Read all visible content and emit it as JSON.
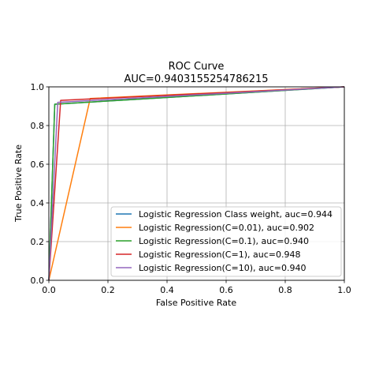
{
  "chart_data": {
    "type": "line",
    "title": "ROC Curve",
    "subtitle": "AUC=0.9403155254786215",
    "xlabel": "False Positive Rate",
    "ylabel": "True Positive Rate",
    "xlim": [
      0.0,
      1.0
    ],
    "ylim": [
      0.0,
      1.0
    ],
    "xticks": [
      "0.0",
      "0.2",
      "0.4",
      "0.6",
      "0.8",
      "1.0"
    ],
    "yticks": [
      "0.0",
      "0.2",
      "0.4",
      "0.6",
      "0.8",
      "1.0"
    ],
    "grid": true,
    "legend_position": "lower-right",
    "series": [
      {
        "name": "Logistic Regression Class weight, auc=0.944",
        "color": "#1f77b4",
        "x": [
          0.0,
          0.02,
          1.0
        ],
        "y": [
          0.0,
          0.91,
          1.0
        ]
      },
      {
        "name": "Logistic Regression(C=0.01), auc=0.902",
        "color": "#ff7f0e",
        "x": [
          0.0,
          0.14,
          1.0
        ],
        "y": [
          0.0,
          0.94,
          1.0
        ]
      },
      {
        "name": "Logistic Regression(C=0.1), auc=0.940",
        "color": "#2ca02c",
        "x": [
          0.0,
          0.02,
          1.0
        ],
        "y": [
          0.0,
          0.91,
          1.0
        ]
      },
      {
        "name": "Logistic Regression(C=1), auc=0.948",
        "color": "#d62728",
        "x": [
          0.0,
          0.04,
          1.0
        ],
        "y": [
          0.0,
          0.93,
          1.0
        ]
      },
      {
        "name": "Logistic Regression(C=10), auc=0.940",
        "color": "#9467bd",
        "x": [
          0.0,
          0.03,
          1.0
        ],
        "y": [
          0.0,
          0.92,
          1.0
        ]
      }
    ]
  }
}
